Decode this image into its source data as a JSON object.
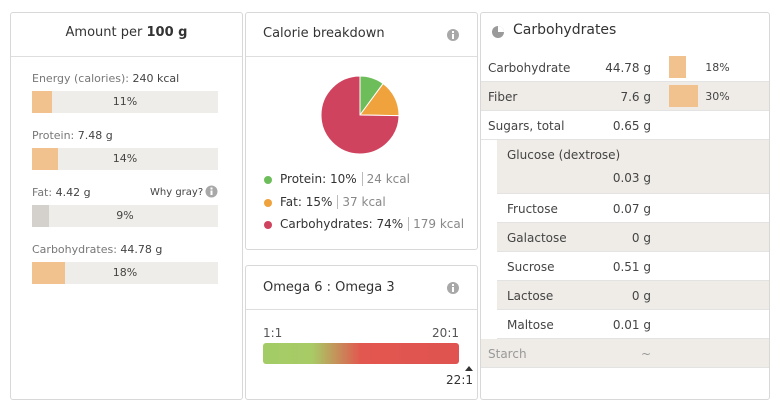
{
  "nutrition": {
    "header": {
      "prefix": "Amount per",
      "amount": "100 g"
    },
    "rows": [
      {
        "label": "Energy (calories):",
        "amount": "240 kcal",
        "percent": {
          "value": 11,
          "label": "11%"
        },
        "color": "#f1c28e"
      },
      {
        "label": "Protein:",
        "amount": "7.48 g",
        "percent": {
          "value": 14,
          "label": "14%"
        },
        "color": "#f1c28e"
      },
      {
        "label": "Fat:",
        "amount": "4.42 g",
        "percent": {
          "value": 9,
          "label": "9%"
        },
        "color": "#d4d1cd"
      },
      {
        "label": "Carbohydrates:",
        "amount": "44.78 g",
        "percent": {
          "value": 18,
          "label": "18%"
        },
        "color": "#f1c28e"
      }
    ],
    "fat_note": "Why gray?"
  },
  "calories": {
    "title": "Calorie breakdown",
    "slices": [
      {
        "name": "Protein:",
        "percent": {
          "value": 10,
          "label": "10%"
        },
        "kcal": "24 kcal",
        "color": "#6dbe5a"
      },
      {
        "name": "Fat:",
        "percent": {
          "value": 15,
          "label": "15%"
        },
        "kcal": "37 kcal",
        "color": "#f0a23d"
      },
      {
        "name": "Carbohydrates:",
        "percent": {
          "value": 74,
          "label": "74%"
        },
        "kcal": "179 kcal",
        "color": "#d0435e"
      }
    ]
  },
  "omega": {
    "title": "Omega 6 : Omega 3",
    "left_label": "1:1",
    "right_label": "20:1",
    "marker_label": "22:1"
  },
  "carbs": {
    "title": "Carbohydrates",
    "rows": [
      {
        "name": "Carbohydrate",
        "amount": "44.78 g",
        "percent": {
          "value": 18,
          "label": "18%"
        }
      },
      {
        "name": "Fiber",
        "amount": "7.6 g",
        "percent": {
          "value": 30,
          "label": "30%"
        }
      },
      {
        "name": "Sugars, total",
        "amount": "0.65 g"
      }
    ],
    "sugars": [
      {
        "name": "Glucose (dextrose)",
        "amount": "0.03 g"
      },
      {
        "name": "Fructose",
        "amount": "0.07 g"
      },
      {
        "name": "Galactose",
        "amount": "0 g"
      },
      {
        "name": "Sucrose",
        "amount": "0.51 g"
      },
      {
        "name": "Lactose",
        "amount": "0 g"
      },
      {
        "name": "Maltose",
        "amount": "0.01 g"
      }
    ],
    "starch": {
      "name": "Starch",
      "amount": "~"
    }
  }
}
